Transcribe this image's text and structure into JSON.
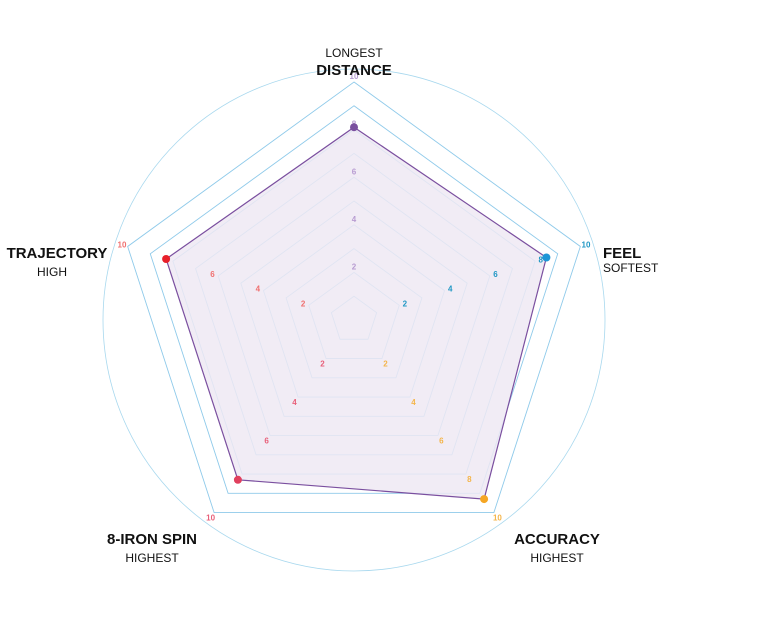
{
  "chart_data": {
    "type": "radar",
    "range": [
      0,
      10
    ],
    "ticks": [
      "2",
      "4",
      "6",
      "8",
      "10"
    ],
    "tick_values": [
      2,
      4,
      6,
      8,
      10
    ],
    "axes": [
      {
        "key": "distance",
        "top_label": "LONGEST",
        "main_label": "DISTANCE",
        "sub_label": "",
        "tick_color": "#b79bd1",
        "value": 8.1,
        "dot_color": "#7a4f9f"
      },
      {
        "key": "feel",
        "top_label": "",
        "main_label": "FEEL",
        "sub_label": "SOFTEST",
        "tick_color": "#1f97c4",
        "value": 8.5,
        "dot_color": "#1e96d6"
      },
      {
        "key": "accuracy",
        "top_label": "",
        "main_label": "ACCURACY",
        "sub_label": "HIGHEST",
        "tick_color": "#f4b54a",
        "value": 9.3,
        "dot_color": "#f5a623"
      },
      {
        "key": "spin",
        "top_label": "",
        "main_label": "8-IRON SPIN",
        "sub_label": "HIGHEST",
        "tick_color": "#e8607a",
        "value": 8.3,
        "dot_color": "#e0405e"
      },
      {
        "key": "trajectory",
        "top_label": "",
        "main_label": "TRAJECTORY",
        "sub_label": "HIGH",
        "tick_color": "#f07070",
        "value": 8.3,
        "dot_color": "#e8202a"
      }
    ],
    "colors": {
      "grid": "#8fcaea",
      "circle": "#a8d8ee",
      "fill": "#efe9f3",
      "outline": "#7a4f9f"
    }
  }
}
